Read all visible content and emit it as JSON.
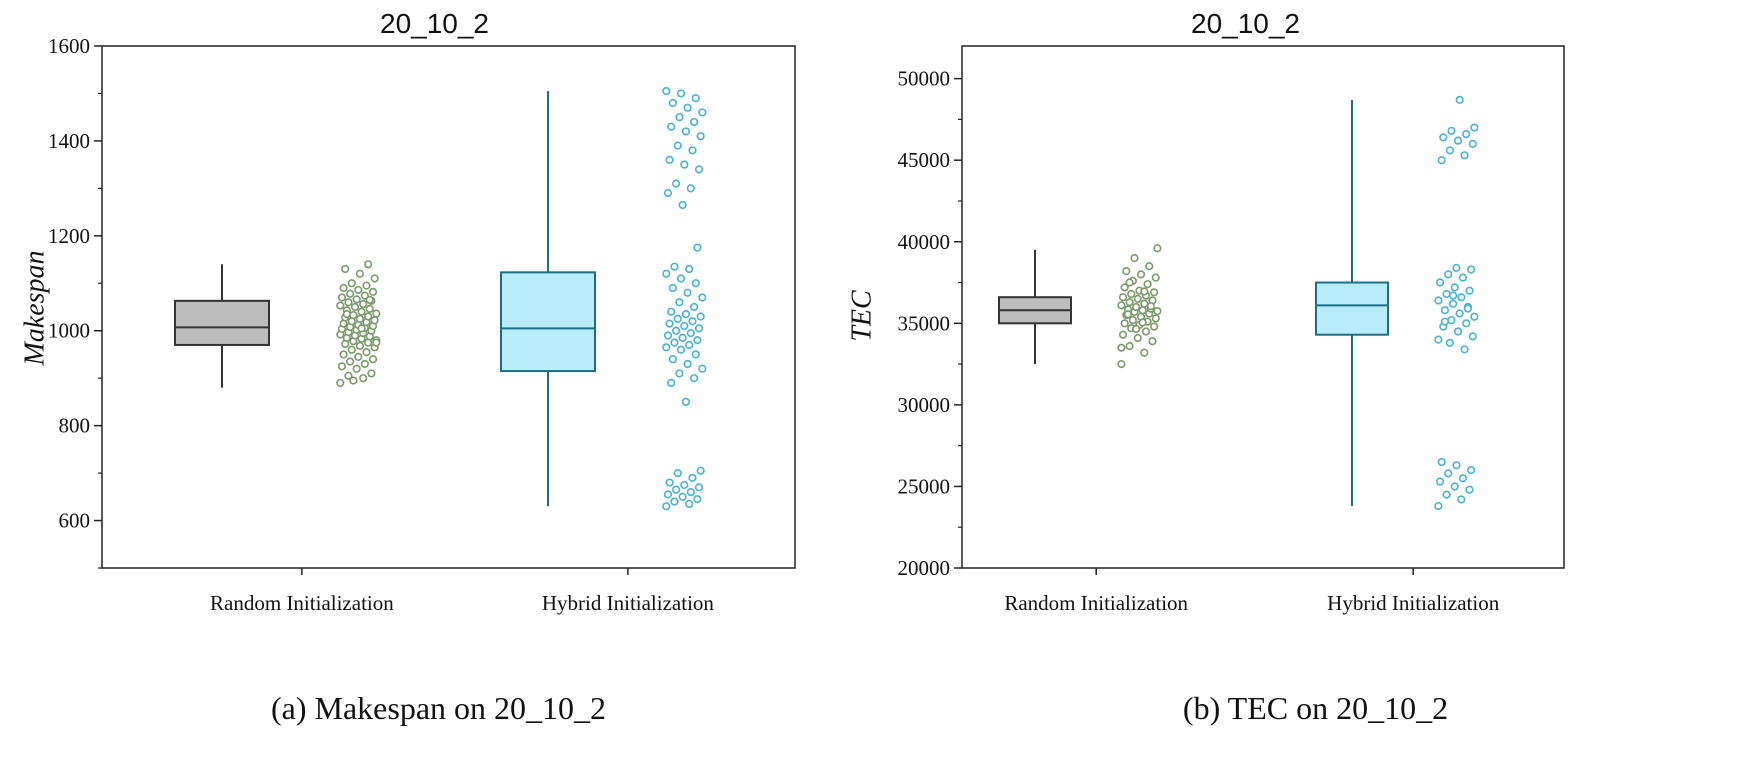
{
  "chart_data": [
    {
      "type": "box",
      "title": "20_10_2",
      "caption": "(a) Makespan on 20_10_2",
      "xlabel": "",
      "ylabel": "Makespan",
      "ylim": [
        500,
        1600
      ],
      "yticks": [
        600,
        800,
        1000,
        1200,
        1400,
        1600
      ],
      "categories": [
        "Random Initialization",
        "Hybrid Initialization"
      ],
      "series": [
        {
          "category": "Random Initialization",
          "color": "#bdbdbd",
          "point_color": "#7a9a6a",
          "whisker_low": 880,
          "q1": 970,
          "median": 1007,
          "q3": 1063,
          "whisker_high": 1140,
          "points": [
            890,
            900,
            905,
            910,
            920,
            925,
            930,
            935,
            940,
            945,
            950,
            955,
            960,
            965,
            968,
            972,
            975,
            978,
            980,
            983,
            985,
            988,
            990,
            992,
            995,
            997,
            1000,
            1002,
            1004,
            1006,
            1008,
            1010,
            1012,
            1015,
            1018,
            1020,
            1022,
            1025,
            1028,
            1030,
            1033,
            1036,
            1040,
            1043,
            1046,
            1050,
            1053,
            1056,
            1060,
            1063,
            1066,
            1070,
            1074,
            1078,
            1082,
            1086,
            1090,
            1095,
            1100,
            1110,
            1120,
            1130,
            1140,
            895,
            975,
            1005,
            1035,
            1065
          ]
        },
        {
          "category": "Hybrid Initialization",
          "color": "#b8ecfb",
          "point_color": "#45b2d8",
          "whisker_low": 630,
          "q1": 915,
          "median": 1005,
          "q3": 1123,
          "whisker_high": 1505,
          "points": [
            630,
            635,
            640,
            645,
            650,
            655,
            660,
            665,
            670,
            675,
            680,
            690,
            700,
            705,
            850,
            890,
            900,
            910,
            920,
            930,
            940,
            950,
            960,
            965,
            970,
            975,
            980,
            985,
            990,
            995,
            1000,
            1005,
            1010,
            1015,
            1020,
            1025,
            1030,
            1035,
            1040,
            1050,
            1060,
            1070,
            1080,
            1090,
            1100,
            1110,
            1120,
            1130,
            1135,
            1175,
            1265,
            1290,
            1300,
            1310,
            1340,
            1350,
            1360,
            1380,
            1390,
            1410,
            1420,
            1430,
            1440,
            1450,
            1460,
            1470,
            1480,
            1490,
            1500,
            1505
          ]
        }
      ],
      "grid": false
    },
    {
      "type": "box",
      "title": "20_10_2",
      "caption": "(b) TEC on 20_10_2",
      "xlabel": "",
      "ylabel": "TEC",
      "ylim": [
        20000,
        52000
      ],
      "yticks": [
        20000,
        25000,
        30000,
        35000,
        40000,
        45000,
        50000
      ],
      "categories": [
        "Random Initialization",
        "Hybrid Initialization"
      ],
      "series": [
        {
          "category": "Random Initialization",
          "color": "#bdbdbd",
          "point_color": "#7a9a6a",
          "whisker_low": 32500,
          "q1": 35000,
          "median": 35800,
          "q3": 36600,
          "whisker_high": 39500,
          "points": [
            32500,
            33200,
            33600,
            33900,
            34100,
            34300,
            34500,
            34700,
            34800,
            34900,
            35000,
            35100,
            35200,
            35300,
            35400,
            35500,
            35600,
            35700,
            35750,
            35800,
            35850,
            35900,
            36000,
            36100,
            36200,
            36300,
            36400,
            36500,
            36600,
            36700,
            36800,
            36900,
            37000,
            37200,
            37400,
            37600,
            37800,
            38000,
            38200,
            38500,
            39000,
            39600,
            35050,
            35550,
            36050,
            34650,
            33500,
            36950,
            37500
          ]
        },
        {
          "category": "Hybrid Initialization",
          "color": "#b8ecfb",
          "point_color": "#45b2d8",
          "whisker_low": 23800,
          "q1": 34300,
          "median": 36100,
          "q3": 37500,
          "whisker_high": 48700,
          "points": [
            23800,
            24200,
            24500,
            24800,
            25000,
            25300,
            25500,
            25800,
            26000,
            26300,
            26500,
            33400,
            33800,
            34200,
            34500,
            34800,
            35000,
            35200,
            35400,
            35600,
            35800,
            36000,
            36200,
            36400,
            36600,
            36800,
            37000,
            37200,
            37500,
            37800,
            38000,
            38300,
            38400,
            45000,
            45300,
            45600,
            46000,
            46200,
            46400,
            46600,
            46800,
            47000,
            48700,
            35100,
            35900,
            36700,
            34000
          ]
        }
      ],
      "grid": false
    }
  ]
}
